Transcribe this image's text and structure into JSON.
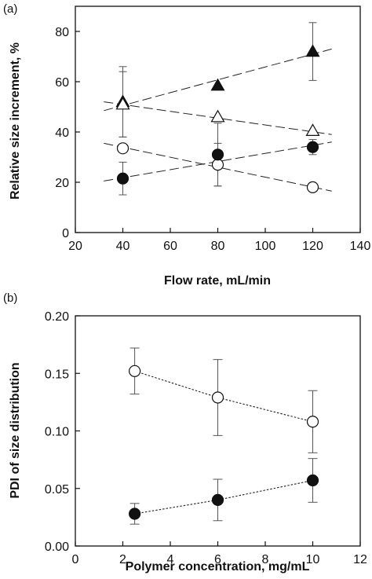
{
  "chart_data": [
    {
      "panel_label": "(a)",
      "type": "scatter",
      "xlabel": "Flow rate, mL/min",
      "ylabel": "Relative size increment, %",
      "xlim": [
        20,
        140
      ],
      "ylim": [
        0,
        90
      ],
      "xticks": [
        20,
        40,
        60,
        80,
        100,
        120,
        140
      ],
      "yticks": [
        0,
        20,
        40,
        60,
        80
      ],
      "grid": false,
      "series": [
        {
          "marker": "triangle-filled",
          "x": [
            40,
            80,
            120
          ],
          "y": [
            52,
            58.5,
            72
          ],
          "err": [
            14,
            0,
            11.5
          ],
          "trend": {
            "x": [
              32,
              128
            ],
            "y": [
              48.5,
              73
            ]
          }
        },
        {
          "marker": "triangle-open",
          "x": [
            40,
            80,
            120
          ],
          "y": [
            51,
            46,
            40.5
          ],
          "err": [
            13,
            0,
            0
          ],
          "trend": {
            "x": [
              32,
              128
            ],
            "y": [
              52,
              39
            ]
          }
        },
        {
          "marker": "circle-open",
          "x": [
            40,
            80,
            120
          ],
          "y": [
            33.5,
            27,
            18
          ],
          "err": [
            0,
            8.5,
            0
          ],
          "trend": {
            "x": [
              32,
              128
            ],
            "y": [
              35.5,
              16.5
            ]
          }
        },
        {
          "marker": "circle-filled",
          "x": [
            40,
            80,
            120
          ],
          "y": [
            21.5,
            31,
            34
          ],
          "err": [
            6.5,
            12.5,
            3
          ],
          "trend": {
            "x": [
              32,
              128
            ],
            "y": [
              20.5,
              36
            ]
          }
        }
      ]
    },
    {
      "panel_label": "(b)",
      "type": "line",
      "xlabel": "Polymer concentration, mg/mL",
      "ylabel": "PDI of size distribution",
      "xlim": [
        0,
        12
      ],
      "ylim": [
        0,
        0.2
      ],
      "xticks": [
        0,
        2,
        4,
        6,
        8,
        10,
        12
      ],
      "yticks": [
        "0.00",
        "0.05",
        "0.10",
        "0.15",
        "0.20"
      ],
      "grid": false,
      "series": [
        {
          "marker": "circle-open",
          "x": [
            2.5,
            6,
            10
          ],
          "y": [
            0.152,
            0.129,
            0.108
          ],
          "err": [
            0.02,
            0.033,
            0.027
          ]
        },
        {
          "marker": "circle-filled",
          "x": [
            2.5,
            6,
            10
          ],
          "y": [
            0.028,
            0.04,
            0.057
          ],
          "err": [
            0.009,
            0.018,
            0.019
          ]
        }
      ]
    }
  ]
}
